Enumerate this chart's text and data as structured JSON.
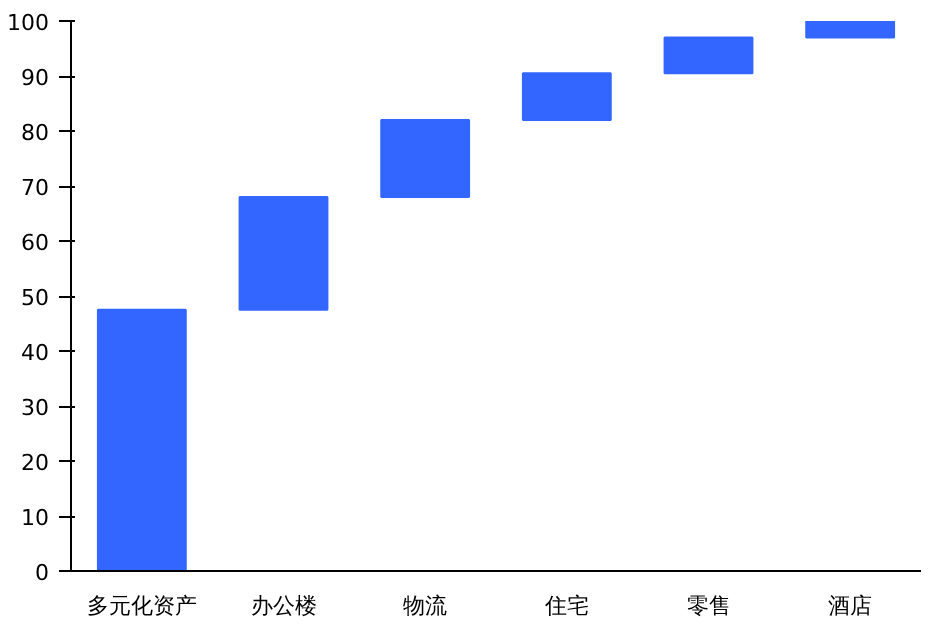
{
  "chart_data": {
    "type": "bar",
    "categories": [
      "多元化资产",
      "办公楼",
      "物流",
      "住宅",
      "零售",
      "酒店"
    ],
    "values": [
      47.5,
      20.5,
      14,
      8.5,
      6.5,
      3
    ],
    "base": [
      0,
      47.5,
      68,
      82,
      90.5,
      97
    ],
    "color": "#3366ff",
    "ylim": [
      0,
      100
    ],
    "yticks": [
      0,
      10,
      20,
      30,
      40,
      50,
      60,
      70,
      80,
      90,
      100
    ],
    "grid": false
  }
}
